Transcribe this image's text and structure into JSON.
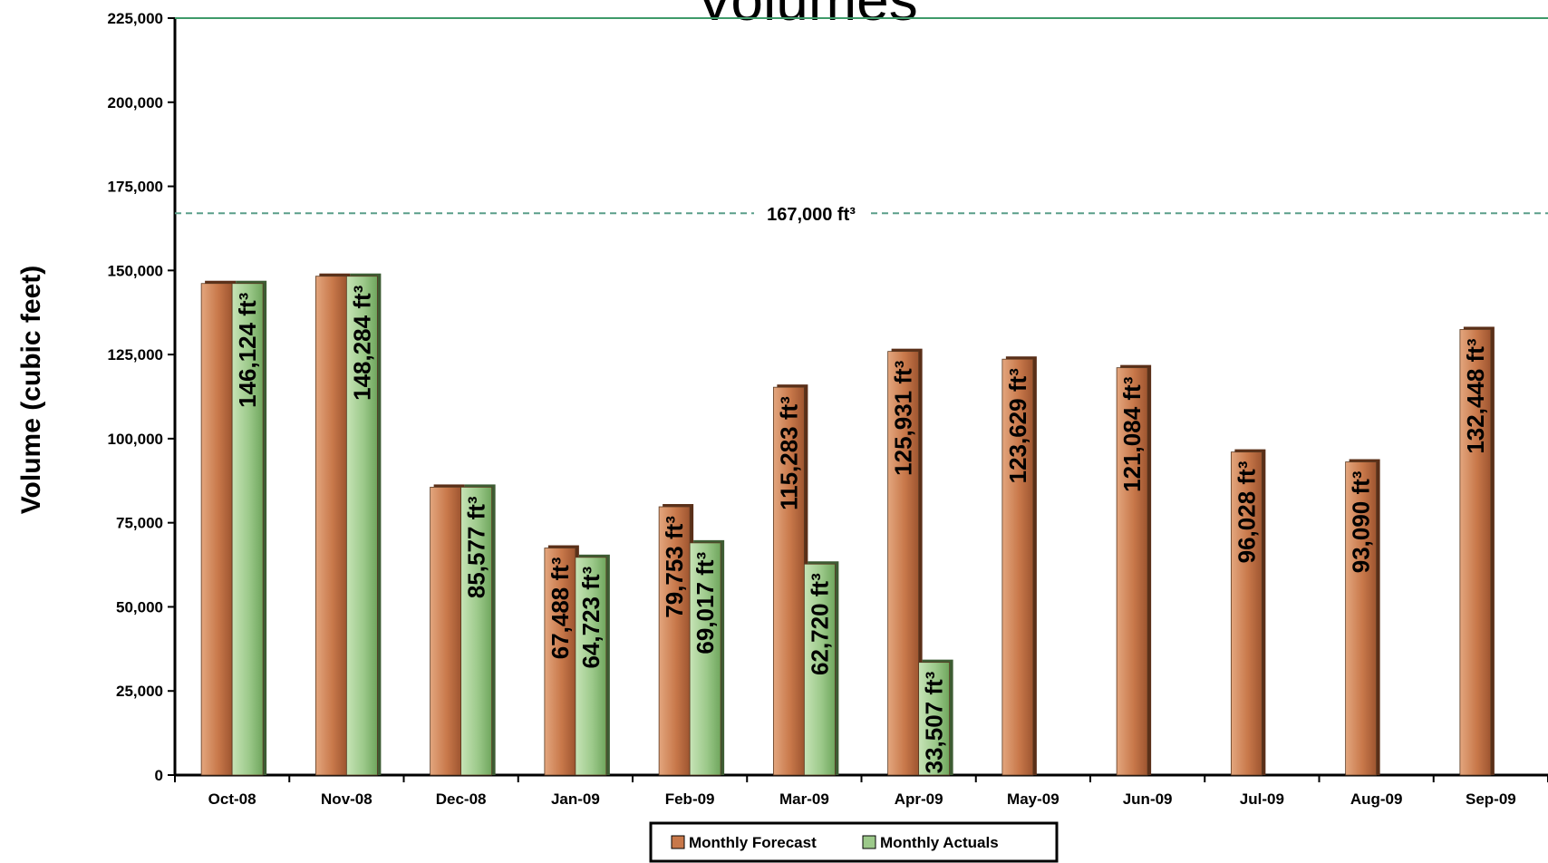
{
  "chart_data": {
    "type": "bar",
    "title": "Volumes",
    "xlabel": "",
    "ylabel": "Volume (cubic feet)",
    "ylim": [
      0,
      225000
    ],
    "yticks": [
      0,
      25000,
      50000,
      75000,
      100000,
      125000,
      150000,
      175000,
      200000,
      225000
    ],
    "ytick_labels": [
      "0",
      "25,000",
      "50,000",
      "75,000",
      "100,000",
      "125,000",
      "150,000",
      "175,000",
      "200,000",
      "225,000"
    ],
    "categories": [
      "Oct-08",
      "Nov-08",
      "Dec-08",
      "Jan-09",
      "Feb-09",
      "Mar-09",
      "Apr-09",
      "May-09",
      "Jun-09",
      "Jul-09",
      "Aug-09",
      "Sep-09"
    ],
    "series": [
      {
        "name": "Monthly Forecast",
        "color": "#C8784A",
        "values": [
          146124,
          148284,
          85577,
          67488,
          79753,
          115283,
          125931,
          123629,
          121084,
          96028,
          93090,
          132448
        ],
        "labels": [
          "",
          "",
          "",
          "67,488 ft³",
          "79,753 ft³",
          "115,283 ft³",
          "125,931 ft³",
          "123,629 ft³",
          "121,084 ft³",
          "96,028 ft³",
          "93,090 ft³",
          "132,448 ft³"
        ]
      },
      {
        "name": "Monthly Actuals",
        "color": "#9CC98A",
        "values": [
          146124,
          148284,
          85577,
          64723,
          69017,
          62720,
          33507,
          null,
          null,
          null,
          null,
          null
        ],
        "labels": [
          "146,124 ft³",
          "148,284 ft³",
          "85,577 ft³",
          "64,723 ft³",
          "69,017 ft³",
          "62,720 ft³",
          "33,507 ft³",
          "",
          "",
          "",
          "",
          ""
        ]
      }
    ],
    "reference_line": {
      "value": 167000,
      "label": "167,000 ft³",
      "color": "#5a9e8a",
      "style": "dashed"
    },
    "top_line_color": "#3f9a6a",
    "grid": false,
    "legend": {
      "placement": "bottom-center",
      "entries": [
        "Monthly Forecast",
        "Monthly Actuals"
      ]
    }
  }
}
